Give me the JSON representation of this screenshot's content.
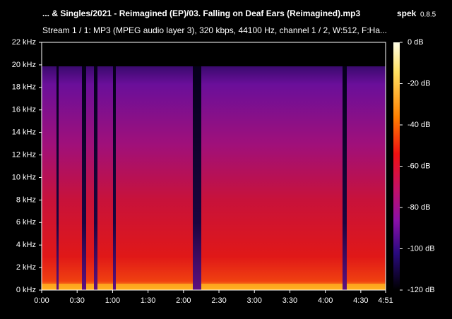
{
  "chart_data": {
    "type": "spectrogram",
    "title": "... & Singles/2021 - Reimagined (EP)/03. Falling on Deaf Ears (Reimagined).mp3",
    "app_name": "spek",
    "app_version": "0.8.5",
    "subtitle": "Stream 1 / 1: MP3 (MPEG audio layer 3), 320 kbps, 44100 Hz, channel 1 / 2, W:512, F:Ha...",
    "xlim": [
      0,
      291
    ],
    "xticks": [
      {
        "value": 0,
        "label": "0:00"
      },
      {
        "value": 30,
        "label": "0:30"
      },
      {
        "value": 60,
        "label": "1:00"
      },
      {
        "value": 90,
        "label": "1:30"
      },
      {
        "value": 120,
        "label": "2:00"
      },
      {
        "value": 150,
        "label": "2:30"
      },
      {
        "value": 180,
        "label": "3:00"
      },
      {
        "value": 210,
        "label": "3:30"
      },
      {
        "value": 240,
        "label": "4:00"
      },
      {
        "value": 270,
        "label": "4:30"
      },
      {
        "value": 291,
        "label": "4:51"
      }
    ],
    "ylim": [
      0,
      22
    ],
    "yticks": [
      {
        "value": 0,
        "label": "0 kHz"
      },
      {
        "value": 2,
        "label": "2 kHz"
      },
      {
        "value": 4,
        "label": "4 kHz"
      },
      {
        "value": 6,
        "label": "6 kHz"
      },
      {
        "value": 8,
        "label": "8 kHz"
      },
      {
        "value": 10,
        "label": "10 kHz"
      },
      {
        "value": 12,
        "label": "12 kHz"
      },
      {
        "value": 14,
        "label": "14 kHz"
      },
      {
        "value": 16,
        "label": "16 kHz"
      },
      {
        "value": 18,
        "label": "18 kHz"
      },
      {
        "value": 20,
        "label": "20 kHz"
      },
      {
        "value": 22,
        "label": "22 kHz"
      }
    ],
    "clim": [
      -120,
      0
    ],
    "cticks": [
      {
        "value": 0,
        "label": "0 dB"
      },
      {
        "value": -20,
        "label": "-20 dB"
      },
      {
        "value": -40,
        "label": "-40 dB"
      },
      {
        "value": -60,
        "label": "-60 dB"
      },
      {
        "value": -80,
        "label": "-80 dB"
      },
      {
        "value": -100,
        "label": "-100 dB"
      },
      {
        "value": -120,
        "label": "-120 dB"
      }
    ]
  }
}
